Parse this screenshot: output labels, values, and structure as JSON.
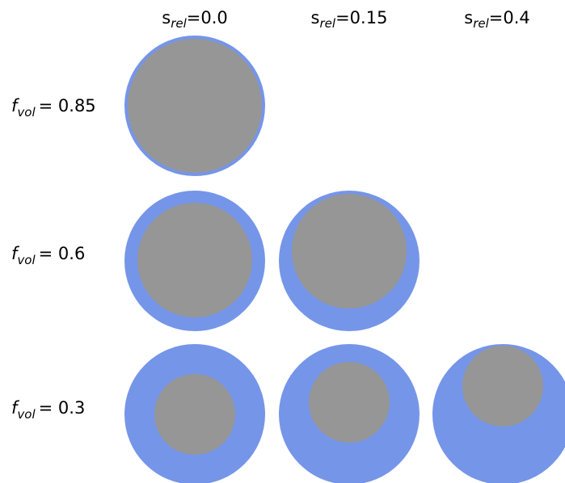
{
  "columns": [
    {
      "symbol": "s",
      "subscript": "rel",
      "value": "=0.0"
    },
    {
      "symbol": "s",
      "subscript": "rel",
      "value": "=0.15"
    },
    {
      "symbol": "s",
      "subscript": "rel",
      "value": "=0.4"
    }
  ],
  "rows": [
    {
      "symbol": "f",
      "subscript": "vol",
      "value": "= 0.85"
    },
    {
      "symbol": "f",
      "subscript": "vol",
      "value": "= 0.6"
    },
    {
      "symbol": "f",
      "subscript": "vol",
      "value": "= 0.3"
    }
  ]
}
